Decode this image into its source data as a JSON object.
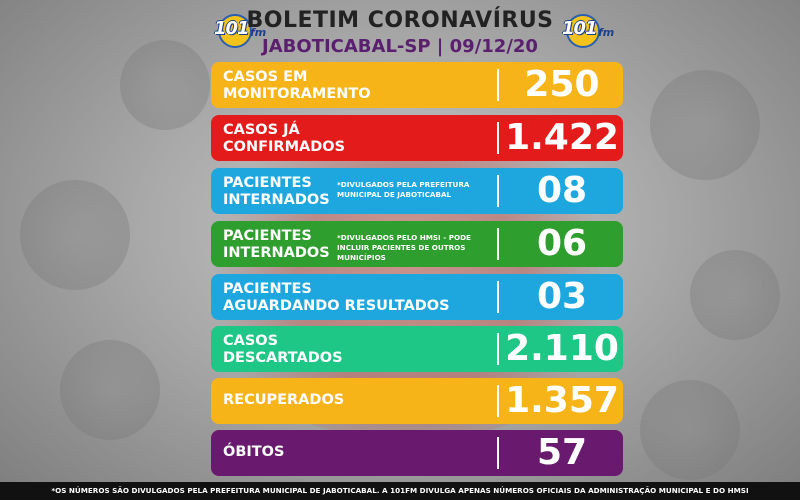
{
  "header": {
    "title": "BOLETIM CORONAVÍRUS",
    "subtitle": "JABOTICABAL-SP | 09/12/20",
    "logo_text": "101",
    "logo_suffix": "fm"
  },
  "rows": [
    {
      "label_line1": "CASOS EM",
      "label_line2": "MONITORAMENTO",
      "note": "",
      "value": "250",
      "color": "#f6b419"
    },
    {
      "label_line1": "CASOS JÁ",
      "label_line2": "CONFIRMADOS",
      "note": "",
      "value": "1.422",
      "color": "#e31b1b"
    },
    {
      "label_line1": "PACIENTES",
      "label_line2": "INTERNADOS",
      "note": "*DIVULGADOS PELA PREFEITURA MUNICIPAL DE JABOTICABAL",
      "value": "08",
      "color": "#1ea7df"
    },
    {
      "label_line1": "PACIENTES",
      "label_line2": "INTERNADOS",
      "note": "*DIVULGADOS PELO HMSI - PODE INCLUIR PACIENTES DE OUTROS MUNICÍPIOS",
      "value": "06",
      "color": "#2e9e2e"
    },
    {
      "label_line1": "PACIENTES",
      "label_line2": "AGUARDANDO RESULTADOS",
      "note": "",
      "value": "03",
      "color": "#1ea7df"
    },
    {
      "label_line1": "CASOS",
      "label_line2": "DESCARTADOS",
      "note": "",
      "value": "2.110",
      "color": "#1ec785"
    },
    {
      "label_line1": "RECUPERADOS",
      "label_line2": "",
      "note": "",
      "value": "1.357",
      "color": "#f6b419"
    },
    {
      "label_line1": "ÓBITOS",
      "label_line2": "",
      "note": "",
      "value": "57",
      "color": "#6a1a6e"
    }
  ],
  "footer": {
    "text": "*OS NÚMEROS SÃO DIVULGADOS PELA PREFEITURA MUNICIPAL DE JABOTICABAL. A 101FM DIVULGA APENAS NÚMEROS OFICIAIS DA ADMINISTRAÇÃO MUNICIPAL E DO HMSI"
  }
}
